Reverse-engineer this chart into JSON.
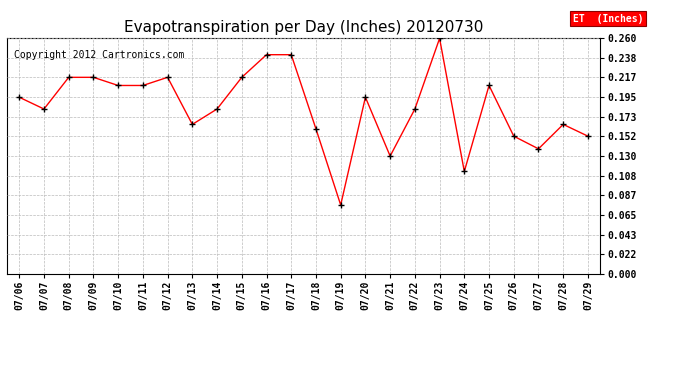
{
  "title": "Evapotranspiration per Day (Inches) 20120730",
  "copyright": "Copyright 2012 Cartronics.com",
  "legend_label": "ET  (Inches)",
  "dates": [
    "07/06",
    "07/07",
    "07/08",
    "07/09",
    "07/10",
    "07/11",
    "07/12",
    "07/13",
    "07/14",
    "07/15",
    "07/16",
    "07/17",
    "07/18",
    "07/19",
    "07/20",
    "07/21",
    "07/22",
    "07/23",
    "07/24",
    "07/25",
    "07/26",
    "07/27",
    "07/28",
    "07/29"
  ],
  "values": [
    0.195,
    0.182,
    0.217,
    0.217,
    0.208,
    0.208,
    0.217,
    0.165,
    0.182,
    0.217,
    0.242,
    0.242,
    0.16,
    0.076,
    0.195,
    0.13,
    0.182,
    0.26,
    0.113,
    0.208,
    0.152,
    0.138,
    0.165,
    0.152
  ],
  "line_color": "red",
  "marker_color": "black",
  "marker_style": "+",
  "bg_color": "#ffffff",
  "grid_color": "#bbbbbb",
  "ylim": [
    0.0,
    0.26
  ],
  "yticks": [
    0.0,
    0.022,
    0.043,
    0.065,
    0.087,
    0.108,
    0.13,
    0.152,
    0.173,
    0.195,
    0.217,
    0.238,
    0.26
  ],
  "title_fontsize": 11,
  "copyright_fontsize": 7,
  "tick_fontsize": 7,
  "xtick_fontsize": 7,
  "legend_bg": "red",
  "legend_text_color": "white"
}
